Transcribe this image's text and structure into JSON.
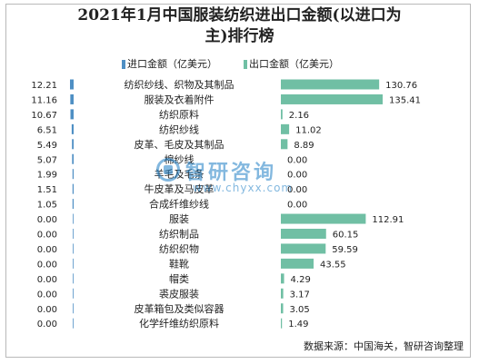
{
  "chart_data": {
    "type": "bar",
    "title": "2021年1月中国服装纺织进出口金额(以进口为\n主)排行榜",
    "legend": {
      "placement": "top"
    },
    "categories": [
      "纺织纱线、织物及其制品",
      "服装及衣着附件",
      "纺织原料",
      "纺织纱线",
      "皮革、毛皮及其制品",
      "棉纱线",
      "羊毛及毛条",
      "牛皮革及马皮革",
      "合成纤维纱线",
      "服装",
      "纺织制品",
      "纺织织物",
      "鞋靴",
      "帽类",
      "裘皮服装",
      "皮革箱包及类似容器",
      "化学纤维纺织原料"
    ],
    "series": [
      {
        "name": "进口金额（亿美元）",
        "color": "#4e8fc4",
        "values": [
          12.21,
          11.16,
          10.67,
          6.51,
          5.49,
          5.07,
          1.99,
          1.51,
          1.05,
          0.0,
          0.0,
          0.0,
          0.0,
          0.0,
          0.0,
          0.0,
          0.0
        ],
        "labels": [
          "12.21",
          "11.16",
          "10.67",
          "6.51",
          "5.49",
          "5.07",
          "1.99",
          "1.51",
          "1.05",
          "0.00",
          "0.00",
          "0.00",
          "0.00",
          "0.00",
          "0.00",
          "0.00",
          "0.00"
        ]
      },
      {
        "name": "出口金额（亿美元）",
        "color": "#70bfa4",
        "values": [
          130.76,
          135.41,
          2.16,
          11.02,
          8.89,
          0.0,
          0.0,
          0.0,
          0.0,
          112.91,
          60.15,
          59.59,
          43.55,
          4.29,
          3.17,
          3.05,
          1.49
        ],
        "labels": [
          "130.76",
          "135.41",
          "2.16",
          "11.02",
          "8.89",
          "0.00",
          "0.00",
          "0.00",
          "0.00",
          "112.91",
          "60.15",
          "59.59",
          "43.55",
          "4.29",
          "3.17",
          "3.05",
          "1.49"
        ]
      }
    ],
    "xlim_import": [
      0,
      12.21
    ],
    "xlim_export": [
      0,
      135.41
    ],
    "grid": false
  },
  "source": "数据来源：中国海关，智研咨询整理",
  "watermark": {
    "cn": "智研咨询",
    "url": "www.chyxx.com"
  }
}
